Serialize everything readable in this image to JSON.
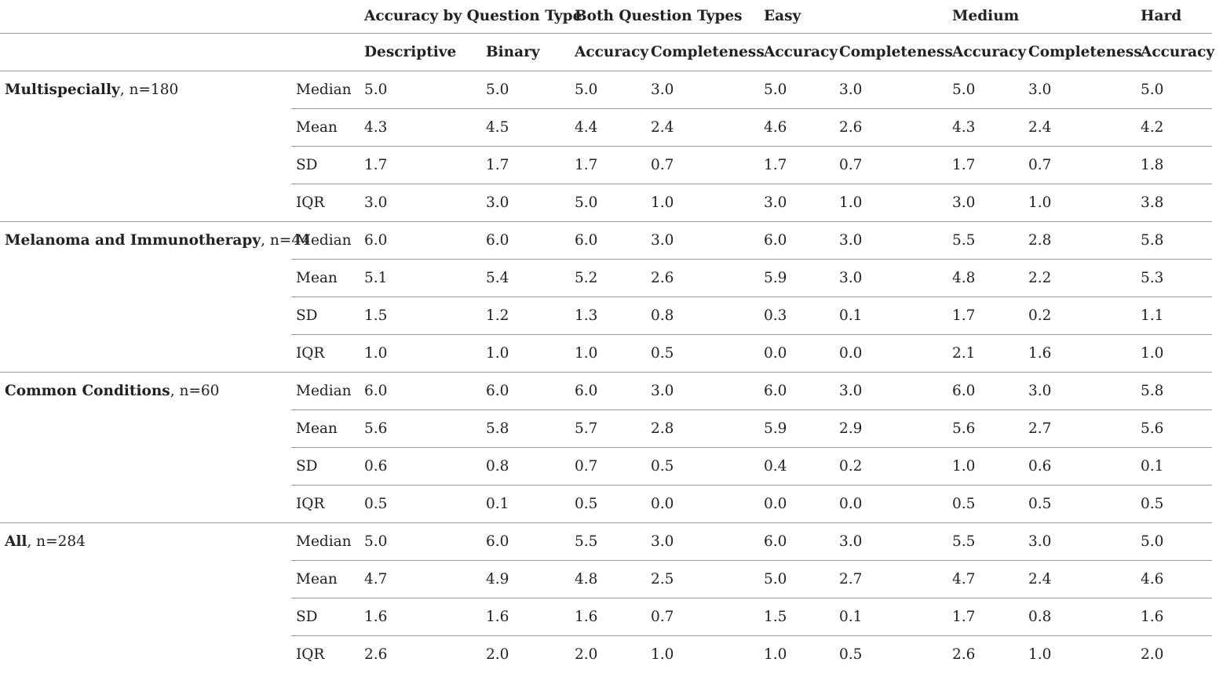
{
  "header": {
    "groups": [
      "Accuracy by Question Type",
      "Both Question Types",
      "Easy",
      "Medium",
      "Hard"
    ],
    "columns": [
      "Descriptive",
      "Binary",
      "Accuracy",
      "Completeness",
      "Accuracy",
      "Completeness",
      "Accuracy",
      "Completeness",
      "Accuracy"
    ]
  },
  "groups": [
    {
      "name": "Multispecially",
      "n": ", n=180",
      "rows": [
        {
          "stat": "Median",
          "values": [
            "5.0",
            "5.0",
            "5.0",
            "3.0",
            "5.0",
            "3.0",
            "5.0",
            "3.0",
            "5.0"
          ]
        },
        {
          "stat": "Mean",
          "values": [
            "4.3",
            "4.5",
            "4.4",
            "2.4",
            "4.6",
            "2.6",
            "4.3",
            "2.4",
            "4.2"
          ]
        },
        {
          "stat": "SD",
          "values": [
            "1.7",
            "1.7",
            "1.7",
            "0.7",
            "1.7",
            "0.7",
            "1.7",
            "0.7",
            "1.8"
          ]
        },
        {
          "stat": "IQR",
          "values": [
            "3.0",
            "3.0",
            "5.0",
            "1.0",
            "3.0",
            "1.0",
            "3.0",
            "1.0",
            "3.8"
          ]
        }
      ]
    },
    {
      "name": "Melanoma and Immunotherapy",
      "n": ", n=44",
      "rows": [
        {
          "stat": "Median",
          "values": [
            "6.0",
            "6.0",
            "6.0",
            "3.0",
            "6.0",
            "3.0",
            "5.5",
            "2.8",
            "5.8"
          ]
        },
        {
          "stat": "Mean",
          "values": [
            "5.1",
            "5.4",
            "5.2",
            "2.6",
            "5.9",
            "3.0",
            "4.8",
            "2.2",
            "5.3"
          ]
        },
        {
          "stat": "SD",
          "values": [
            "1.5",
            "1.2",
            "1.3",
            "0.8",
            "0.3",
            "0.1",
            "1.7",
            "0.2",
            "1.1"
          ]
        },
        {
          "stat": "IQR",
          "values": [
            "1.0",
            "1.0",
            "1.0",
            "0.5",
            "0.0",
            "0.0",
            "2.1",
            "1.6",
            "1.0"
          ]
        }
      ]
    },
    {
      "name": "Common Conditions",
      "n": ", n=60",
      "rows": [
        {
          "stat": "Median",
          "values": [
            "6.0",
            "6.0",
            "6.0",
            "3.0",
            "6.0",
            "3.0",
            "6.0",
            "3.0",
            "5.8"
          ]
        },
        {
          "stat": "Mean",
          "values": [
            "5.6",
            "5.8",
            "5.7",
            "2.8",
            "5.9",
            "2.9",
            "5.6",
            "2.7",
            "5.6"
          ]
        },
        {
          "stat": "SD",
          "values": [
            "0.6",
            "0.8",
            "0.7",
            "0.5",
            "0.4",
            "0.2",
            "1.0",
            "0.6",
            "0.1"
          ]
        },
        {
          "stat": "IQR",
          "values": [
            "0.5",
            "0.1",
            "0.5",
            "0.0",
            "0.0",
            "0.0",
            "0.5",
            "0.5",
            "0.5"
          ]
        }
      ]
    },
    {
      "name": "All",
      "n": ", n=284",
      "rows": [
        {
          "stat": "Median",
          "values": [
            "5.0",
            "6.0",
            "5.5",
            "3.0",
            "6.0",
            "3.0",
            "5.5",
            "3.0",
            "5.0"
          ]
        },
        {
          "stat": "Mean",
          "values": [
            "4.7",
            "4.9",
            "4.8",
            "2.5",
            "5.0",
            "2.7",
            "4.7",
            "2.4",
            "4.6"
          ]
        },
        {
          "stat": "SD",
          "values": [
            "1.6",
            "1.6",
            "1.6",
            "0.7",
            "1.5",
            "0.1",
            "1.7",
            "0.8",
            "1.6"
          ]
        },
        {
          "stat": "IQR",
          "values": [
            "2.6",
            "2.0",
            "2.0",
            "1.0",
            "1.0",
            "0.5",
            "2.6",
            "1.0",
            "2.0"
          ]
        }
      ]
    }
  ]
}
